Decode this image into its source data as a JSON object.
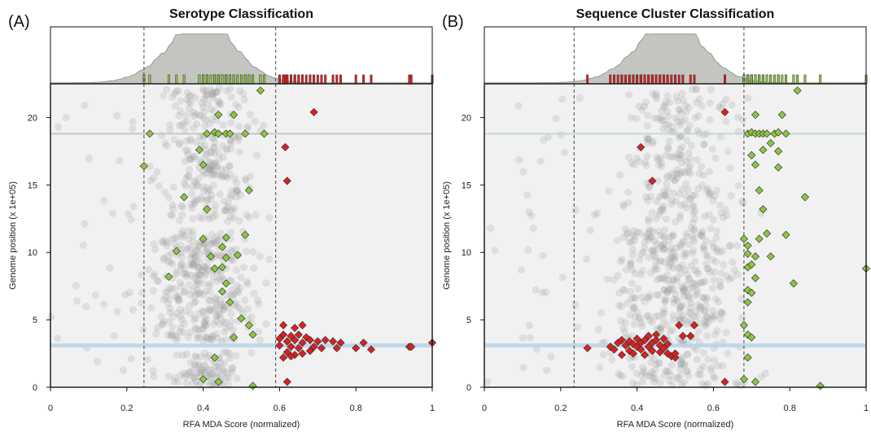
{
  "chart_data": [
    {
      "type": "scatter",
      "panel_label": "(A)",
      "title": "Serotype Classification",
      "xlabel": "RFA MDA Score (normalized)",
      "ylabel": "Genome position (x 1e+05)",
      "xlim": [
        0,
        1
      ],
      "ylim": [
        0,
        22.5
      ],
      "x_ticks": [
        0,
        0.2,
        0.4,
        0.6,
        0.8,
        1
      ],
      "x_tick_labels": [
        "0",
        "0.2",
        "0.4",
        "0.6",
        "0.8",
        "1"
      ],
      "y_ticks": [
        0,
        5,
        10,
        15,
        20
      ],
      "y_tick_labels": [
        "0",
        "5",
        "10",
        "15",
        "20"
      ],
      "thresholds": [
        0.245,
        0.59
      ],
      "hlines": [
        {
          "y": 18.8,
          "color": "#b9c4b9"
        },
        {
          "y": 3.1,
          "color": "#b7d3e8"
        }
      ],
      "background_clusters": [
        {
          "xc": 0.4,
          "xs": 0.055,
          "y0": 0.1,
          "y1": 2.6,
          "n": 90
        },
        {
          "xc": 0.4,
          "xs": 0.07,
          "y0": 3.4,
          "y1": 11.6,
          "n": 330
        },
        {
          "xc": 0.41,
          "xs": 0.06,
          "y0": 12.2,
          "y1": 22.2,
          "n": 260
        },
        {
          "xc": 0.15,
          "xs": 0.1,
          "y0": 0.0,
          "y1": 22.2,
          "n": 45
        }
      ],
      "density_peak_x": 0.4,
      "series": [
        {
          "name": "green",
          "color": "#8cc63f",
          "points": [
            [
              0.55,
              22.0
            ],
            [
              0.44,
              20.2
            ],
            [
              0.48,
              20.2
            ],
            [
              0.26,
              18.8
            ],
            [
              0.41,
              18.8
            ],
            [
              0.43,
              18.9
            ],
            [
              0.44,
              18.8
            ],
            [
              0.46,
              18.8
            ],
            [
              0.47,
              18.8
            ],
            [
              0.51,
              18.8
            ],
            [
              0.56,
              18.8
            ],
            [
              0.39,
              17.6
            ],
            [
              0.4,
              16.5
            ],
            [
              0.245,
              16.4
            ],
            [
              0.52,
              14.6
            ],
            [
              0.35,
              14.1
            ],
            [
              0.41,
              13.2
            ],
            [
              0.4,
              11.0
            ],
            [
              0.46,
              11.1
            ],
            [
              0.51,
              11.3
            ],
            [
              0.33,
              10.1
            ],
            [
              0.45,
              10.4
            ],
            [
              0.42,
              9.7
            ],
            [
              0.46,
              9.6
            ],
            [
              0.49,
              9.8
            ],
            [
              0.43,
              8.8
            ],
            [
              0.45,
              8.9
            ],
            [
              0.31,
              8.2
            ],
            [
              0.46,
              7.7
            ],
            [
              0.45,
              7.1
            ],
            [
              0.47,
              6.3
            ],
            [
              0.5,
              5.1
            ],
            [
              0.52,
              4.6
            ],
            [
              0.53,
              3.9
            ],
            [
              0.48,
              3.7
            ],
            [
              0.43,
              2.2
            ],
            [
              0.4,
              0.6
            ],
            [
              0.44,
              0.4
            ],
            [
              0.53,
              0.1
            ]
          ]
        },
        {
          "name": "red",
          "color": "#dd1f1f",
          "points": [
            [
              0.69,
              20.4
            ],
            [
              0.615,
              17.8
            ],
            [
              0.62,
              15.3
            ],
            [
              0.61,
              4.6
            ],
            [
              0.64,
              4.4
            ],
            [
              0.66,
              4.6
            ],
            [
              0.61,
              3.9
            ],
            [
              0.63,
              3.8
            ],
            [
              0.65,
              3.9
            ],
            [
              0.67,
              3.7
            ],
            [
              0.6,
              3.6
            ],
            [
              0.62,
              3.4
            ],
            [
              0.64,
              3.5
            ],
            [
              0.66,
              3.3
            ],
            [
              0.68,
              3.5
            ],
            [
              0.7,
              3.4
            ],
            [
              0.72,
              3.5
            ],
            [
              0.74,
              3.4
            ],
            [
              0.76,
              3.3
            ],
            [
              0.6,
              3.1
            ],
            [
              0.63,
              3.0
            ],
            [
              0.65,
              2.9
            ],
            [
              0.69,
              3.0
            ],
            [
              0.71,
              2.9
            ],
            [
              0.75,
              2.9
            ],
            [
              0.8,
              2.9
            ],
            [
              0.82,
              3.3
            ],
            [
              0.84,
              2.8
            ],
            [
              0.94,
              3.0
            ],
            [
              0.945,
              3.0
            ],
            [
              1.0,
              3.3
            ],
            [
              0.62,
              2.6
            ],
            [
              0.64,
              2.4
            ],
            [
              0.66,
              2.5
            ],
            [
              0.61,
              2.2
            ],
            [
              0.63,
              2.3
            ],
            [
              0.68,
              2.7
            ],
            [
              0.62,
              0.4
            ]
          ]
        }
      ]
    },
    {
      "type": "scatter",
      "panel_label": "(B)",
      "title": "Sequence Cluster Classification",
      "xlabel": "RFA MDA Score (normalized)",
      "ylabel": "Genome position (x 1e+05)",
      "xlim": [
        0,
        1
      ],
      "ylim": [
        0,
        22.5
      ],
      "x_ticks": [
        0,
        0.2,
        0.4,
        0.6,
        0.8,
        1
      ],
      "x_tick_labels": [
        "0",
        "0.2",
        "0.4",
        "0.6",
        "0.8",
        "1"
      ],
      "y_ticks": [
        0,
        5,
        10,
        15,
        20
      ],
      "y_tick_labels": [
        "0",
        "5",
        "10",
        "15",
        "20"
      ],
      "thresholds": [
        0.235,
        0.68
      ],
      "hlines": [
        {
          "y": 18.8,
          "color": "#b9dcb9"
        },
        {
          "y": 3.1,
          "color": "#b7d3e8"
        }
      ],
      "background_clusters": [
        {
          "xc": 0.5,
          "xs": 0.08,
          "y0": 0.1,
          "y1": 4.8,
          "n": 150
        },
        {
          "xc": 0.5,
          "xs": 0.08,
          "y0": 4.8,
          "y1": 11.8,
          "n": 300
        },
        {
          "xc": 0.52,
          "xs": 0.07,
          "y0": 12.2,
          "y1": 22.2,
          "n": 230
        },
        {
          "xc": 0.17,
          "xs": 0.1,
          "y0": 0.0,
          "y1": 22.2,
          "n": 45
        }
      ],
      "density_peak_x": 0.49,
      "series": [
        {
          "name": "green",
          "color": "#8cc63f",
          "points": [
            [
              0.82,
              22.0
            ],
            [
              0.71,
              20.2
            ],
            [
              0.78,
              20.2
            ],
            [
              0.69,
              18.8
            ],
            [
              0.7,
              18.9
            ],
            [
              0.71,
              18.8
            ],
            [
              0.72,
              18.8
            ],
            [
              0.73,
              18.8
            ],
            [
              0.74,
              18.8
            ],
            [
              0.76,
              18.8
            ],
            [
              0.77,
              18.9
            ],
            [
              0.79,
              18.8
            ],
            [
              0.75,
              18.1
            ],
            [
              0.73,
              17.6
            ],
            [
              0.7,
              17.2
            ],
            [
              0.77,
              17.5
            ],
            [
              0.71,
              16.5
            ],
            [
              0.77,
              16.3
            ],
            [
              0.72,
              14.6
            ],
            [
              0.84,
              14.1
            ],
            [
              0.73,
              13.2
            ],
            [
              0.72,
              11.0
            ],
            [
              0.74,
              11.4
            ],
            [
              0.79,
              11.3
            ],
            [
              0.68,
              11.0
            ],
            [
              0.69,
              10.5
            ],
            [
              0.69,
              9.9
            ],
            [
              0.71,
              9.7
            ],
            [
              0.75,
              9.7
            ],
            [
              0.69,
              8.9
            ],
            [
              0.7,
              9.1
            ],
            [
              0.71,
              8.1
            ],
            [
              1.0,
              8.8
            ],
            [
              0.81,
              7.7
            ],
            [
              0.69,
              7.2
            ],
            [
              0.7,
              7.0
            ],
            [
              0.69,
              6.3
            ],
            [
              0.68,
              4.6
            ],
            [
              0.69,
              3.9
            ],
            [
              0.7,
              3.7
            ],
            [
              0.69,
              2.2
            ],
            [
              0.68,
              0.6
            ],
            [
              0.71,
              0.4
            ],
            [
              0.88,
              0.1
            ]
          ]
        },
        {
          "name": "red",
          "color": "#dd1f1f",
          "points": [
            [
              0.63,
              20.4
            ],
            [
              0.41,
              17.8
            ],
            [
              0.44,
              15.3
            ],
            [
              0.27,
              2.9
            ],
            [
              0.33,
              3.0
            ],
            [
              0.34,
              2.8
            ],
            [
              0.35,
              3.3
            ],
            [
              0.36,
              3.5
            ],
            [
              0.37,
              3.1
            ],
            [
              0.38,
              3.4
            ],
            [
              0.38,
              2.7
            ],
            [
              0.39,
              3.2
            ],
            [
              0.39,
              2.5
            ],
            [
              0.4,
              3.0
            ],
            [
              0.4,
              3.6
            ],
            [
              0.41,
              2.8
            ],
            [
              0.41,
              3.3
            ],
            [
              0.42,
              3.5
            ],
            [
              0.42,
              2.4
            ],
            [
              0.43,
              3.8
            ],
            [
              0.43,
              3.0
            ],
            [
              0.44,
              3.3
            ],
            [
              0.44,
              2.7
            ],
            [
              0.45,
              3.5
            ],
            [
              0.45,
              3.9
            ],
            [
              0.46,
              3.1
            ],
            [
              0.46,
              2.6
            ],
            [
              0.47,
              3.6
            ],
            [
              0.47,
              2.9
            ],
            [
              0.48,
              2.5
            ],
            [
              0.48,
              3.2
            ],
            [
              0.49,
              2.3
            ],
            [
              0.5,
              2.2
            ],
            [
              0.51,
              4.6
            ],
            [
              0.52,
              3.8
            ],
            [
              0.54,
              3.8
            ],
            [
              0.55,
              4.6
            ],
            [
              0.5,
              2.5
            ],
            [
              0.36,
              2.4
            ],
            [
              0.63,
              0.4
            ]
          ]
        }
      ]
    }
  ]
}
